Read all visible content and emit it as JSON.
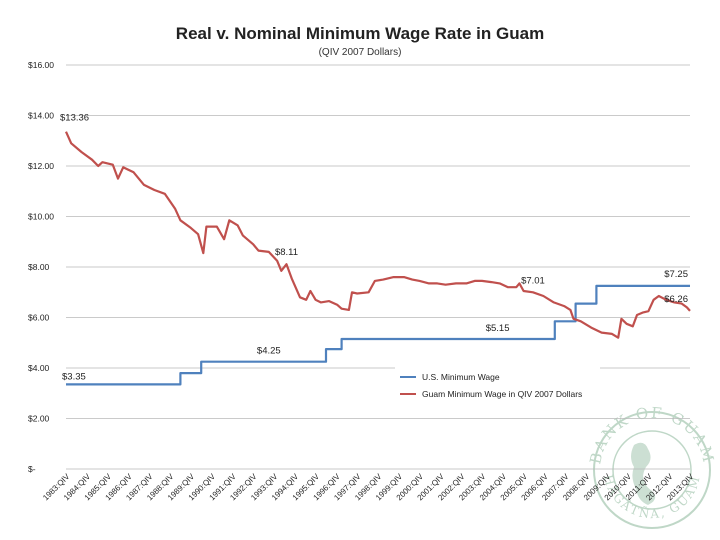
{
  "chart_data": {
    "type": "line",
    "title": "Real v. Nominal Minimum Wage Rate in Guam",
    "subtitle": "(QIV 2007 Dollars)",
    "xlabel": "",
    "ylabel": "",
    "ylim": [
      0,
      16
    ],
    "y_ticks": [
      0,
      2,
      4,
      6,
      8,
      10,
      12,
      14,
      16
    ],
    "y_tick_labels": [
      "$-",
      "$2.00",
      "$4.00",
      "$6.00",
      "$8.00",
      "$10.00",
      "$12.00",
      "$14.00",
      "$16.00"
    ],
    "x_range": [
      1983.75,
      2013.75
    ],
    "x_ticks": [
      1983.75,
      1984.75,
      1985.75,
      1986.75,
      1987.75,
      1988.75,
      1989.75,
      1990.75,
      1991.75,
      1992.75,
      1993.75,
      1994.75,
      1995.75,
      1996.75,
      1997.75,
      1998.75,
      1999.75,
      2000.75,
      2001.75,
      2002.75,
      2003.75,
      2004.75,
      2005.75,
      2006.75,
      2007.75,
      2008.75,
      2009.75,
      2010.75,
      2011.75,
      2012.75,
      2013.75
    ],
    "x_tick_labels": [
      "1983:QIV",
      "1984:QIV",
      "1985:QIV",
      "1986:QIV",
      "1987:QIV",
      "1988:QIV",
      "1989:QIV",
      "1990:QIV",
      "1991:QIV",
      "1992:QIV",
      "1993:QIV",
      "1994:QIV",
      "1995:QIV",
      "1996:QIV",
      "1997:QIV",
      "1998:QIV",
      "1999:QIV",
      "2000:QIV",
      "2001:QIV",
      "2002:QIV",
      "2003:QIV",
      "2004:QIV",
      "2005:QIV",
      "2006:QIV",
      "2007:QIV",
      "2008:QIV",
      "2009:QIV",
      "2010:QIV",
      "2011:QIV",
      "2012:QIV",
      "2013:QIV"
    ],
    "series": [
      {
        "name": "U.S. Minimum Wage",
        "color": "#4f81bd",
        "points": [
          [
            1983.75,
            3.35
          ],
          [
            1989.25,
            3.35
          ],
          [
            1989.25,
            3.8
          ],
          [
            1990.25,
            3.8
          ],
          [
            1990.25,
            4.25
          ],
          [
            1996.25,
            4.25
          ],
          [
            1996.25,
            4.75
          ],
          [
            1997.0,
            4.75
          ],
          [
            1997.0,
            5.15
          ],
          [
            2007.25,
            5.15
          ],
          [
            2007.25,
            5.85
          ],
          [
            2008.25,
            5.85
          ],
          [
            2008.25,
            6.55
          ],
          [
            2009.25,
            6.55
          ],
          [
            2009.25,
            7.25
          ],
          [
            2013.75,
            7.25
          ]
        ]
      },
      {
        "name": "Guam Minimum Wage in QIV 2007 Dollars",
        "color": "#c0504d",
        "points": [
          [
            1983.75,
            13.36
          ],
          [
            1984.0,
            12.9
          ],
          [
            1984.5,
            12.55
          ],
          [
            1985.0,
            12.25
          ],
          [
            1985.3,
            12.0
          ],
          [
            1985.5,
            12.15
          ],
          [
            1986.0,
            12.05
          ],
          [
            1986.25,
            11.5
          ],
          [
            1986.5,
            11.95
          ],
          [
            1987.0,
            11.75
          ],
          [
            1987.5,
            11.25
          ],
          [
            1988.0,
            11.05
          ],
          [
            1988.5,
            10.9
          ],
          [
            1989.0,
            10.3
          ],
          [
            1989.25,
            9.85
          ],
          [
            1989.75,
            9.55
          ],
          [
            1990.1,
            9.3
          ],
          [
            1990.35,
            8.55
          ],
          [
            1990.5,
            9.6
          ],
          [
            1991.0,
            9.6
          ],
          [
            1991.35,
            9.1
          ],
          [
            1991.6,
            9.85
          ],
          [
            1992.0,
            9.65
          ],
          [
            1992.25,
            9.25
          ],
          [
            1992.75,
            8.9
          ],
          [
            1993.0,
            8.65
          ],
          [
            1993.5,
            8.6
          ],
          [
            1993.9,
            8.25
          ],
          [
            1994.1,
            7.85
          ],
          [
            1994.35,
            8.11
          ],
          [
            1994.6,
            7.55
          ],
          [
            1995.0,
            6.8
          ],
          [
            1995.3,
            6.7
          ],
          [
            1995.5,
            7.05
          ],
          [
            1995.75,
            6.7
          ],
          [
            1996.0,
            6.6
          ],
          [
            1996.4,
            6.65
          ],
          [
            1996.8,
            6.5
          ],
          [
            1997.0,
            6.35
          ],
          [
            1997.35,
            6.3
          ],
          [
            1997.5,
            7.0
          ],
          [
            1997.75,
            6.95
          ],
          [
            1998.3,
            7.0
          ],
          [
            1998.6,
            7.45
          ],
          [
            1999.0,
            7.5
          ],
          [
            1999.5,
            7.6
          ],
          [
            2000.0,
            7.6
          ],
          [
            2000.4,
            7.5
          ],
          [
            2000.75,
            7.45
          ],
          [
            2001.2,
            7.35
          ],
          [
            2001.6,
            7.35
          ],
          [
            2002.0,
            7.3
          ],
          [
            2002.5,
            7.35
          ],
          [
            2003.0,
            7.35
          ],
          [
            2003.4,
            7.45
          ],
          [
            2003.75,
            7.45
          ],
          [
            2004.2,
            7.4
          ],
          [
            2004.6,
            7.35
          ],
          [
            2005.0,
            7.2
          ],
          [
            2005.4,
            7.2
          ],
          [
            2005.55,
            7.35
          ],
          [
            2005.75,
            7.05
          ],
          [
            2006.2,
            7.0
          ],
          [
            2006.7,
            6.85
          ],
          [
            2007.2,
            6.6
          ],
          [
            2007.7,
            6.45
          ],
          [
            2008.0,
            6.3
          ],
          [
            2008.15,
            5.95
          ],
          [
            2008.5,
            5.85
          ],
          [
            2009.0,
            5.6
          ],
          [
            2009.5,
            5.4
          ],
          [
            2010.0,
            5.35
          ],
          [
            2010.3,
            5.2
          ],
          [
            2010.45,
            5.95
          ],
          [
            2010.7,
            5.75
          ],
          [
            2011.0,
            5.65
          ],
          [
            2011.2,
            6.1
          ],
          [
            2011.5,
            6.2
          ],
          [
            2011.75,
            6.25
          ],
          [
            2012.0,
            6.7
          ],
          [
            2012.25,
            6.85
          ],
          [
            2012.6,
            6.7
          ],
          [
            2013.0,
            6.6
          ],
          [
            2013.35,
            6.55
          ],
          [
            2013.6,
            6.4
          ],
          [
            2013.75,
            6.26
          ]
        ]
      }
    ],
    "data_labels": [
      {
        "text": "$13.36",
        "x": 1983.75,
        "y": 13.36
      },
      {
        "text": "$8.11",
        "x": 1994.35,
        "y": 8.11
      },
      {
        "text": "$7.01",
        "x": 2006.2,
        "y": 7.0
      },
      {
        "text": "$5.15",
        "x": 2004.5,
        "y": 5.15
      },
      {
        "text": "$4.25",
        "x": 1993.5,
        "y": 4.25
      },
      {
        "text": "$3.35",
        "x": 1983.75,
        "y": 3.35
      },
      {
        "text": "$7.25",
        "x": 2013.75,
        "y": 7.25
      },
      {
        "text": "$6.26",
        "x": 2013.75,
        "y": 6.26
      }
    ],
    "legend": {
      "placement": "bottom-right",
      "entries": [
        "U.S. Minimum Wage",
        "Guam Minimum Wage in QIV 2007 Dollars"
      ]
    },
    "grid": true
  },
  "watermark": {
    "top_text": "BANK OF GUAM",
    "bottom_text": "HAGÅTÑA, GUAM",
    "color": "#8bb79a"
  }
}
